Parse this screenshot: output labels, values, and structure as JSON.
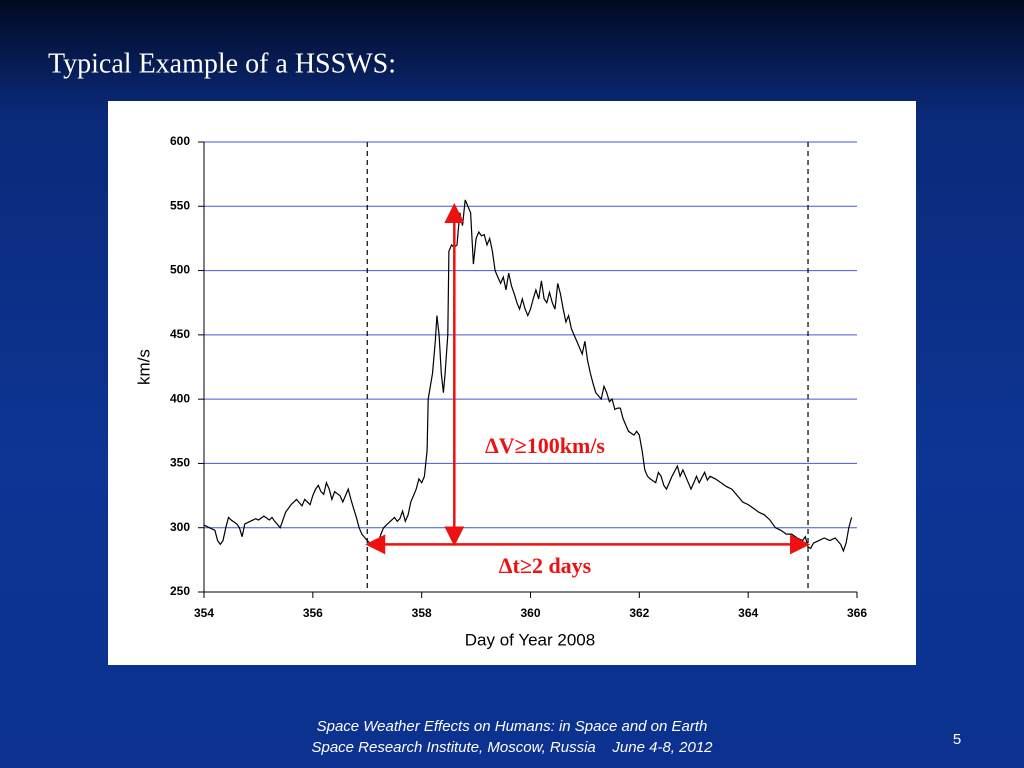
{
  "slide": {
    "title": "Typical Example of a HSSWS:",
    "footer": [
      "Space Weather Effects on Humans: in Space and on Earth",
      "Space Research Institute, Moscow, Russia    June 4-8, 2012"
    ],
    "page_number": "5"
  },
  "chart_data": {
    "type": "line",
    "x_label": "Day of Year 2008",
    "y_label": "km/s",
    "xlim": [
      354,
      366
    ],
    "xticks": [
      354,
      356,
      358,
      360,
      362,
      364,
      366
    ],
    "ylim": [
      250,
      600
    ],
    "yticks": [
      250,
      300,
      350,
      400,
      450,
      500,
      550,
      600
    ],
    "grid": true,
    "grid_color": "#4455dd",
    "color": "#000000",
    "x": [
      354.0,
      354.1,
      354.2,
      354.25,
      354.3,
      354.35,
      354.4,
      354.45,
      354.5,
      354.6,
      354.65,
      354.7,
      354.75,
      354.85,
      354.95,
      355.0,
      355.1,
      355.2,
      355.25,
      355.3,
      355.4,
      355.5,
      355.6,
      355.7,
      355.8,
      355.85,
      355.95,
      356.0,
      356.05,
      356.1,
      356.15,
      356.2,
      356.25,
      356.3,
      356.35,
      356.4,
      356.5,
      356.55,
      356.6,
      356.65,
      356.7,
      356.75,
      356.8,
      356.85,
      356.9,
      357.0,
      357.05,
      357.1,
      357.15,
      357.2,
      357.25,
      357.3,
      357.4,
      357.5,
      357.55,
      357.6,
      357.65,
      357.7,
      357.75,
      357.8,
      357.85,
      357.9,
      357.95,
      358.0,
      358.05,
      358.1,
      358.12,
      358.2,
      358.25,
      358.28,
      358.32,
      358.36,
      358.4,
      358.43,
      358.48,
      358.5,
      358.55,
      358.6,
      358.65,
      358.7,
      358.75,
      358.8,
      358.85,
      358.9,
      358.95,
      359.0,
      359.05,
      359.1,
      359.15,
      359.2,
      359.25,
      359.3,
      359.35,
      359.4,
      359.45,
      359.5,
      359.55,
      359.6,
      359.65,
      359.7,
      359.75,
      359.8,
      359.85,
      359.9,
      359.95,
      360.0,
      360.05,
      360.1,
      360.15,
      360.2,
      360.25,
      360.3,
      360.35,
      360.4,
      360.45,
      360.5,
      360.55,
      360.6,
      360.65,
      360.7,
      360.75,
      360.8,
      360.85,
      360.9,
      360.95,
      361.0,
      361.05,
      361.1,
      361.15,
      361.2,
      361.3,
      361.35,
      361.4,
      361.45,
      361.5,
      361.55,
      361.6,
      361.65,
      361.7,
      361.75,
      361.8,
      361.9,
      361.95,
      362.0,
      362.05,
      362.1,
      362.15,
      362.2,
      362.3,
      362.35,
      362.4,
      362.45,
      362.5,
      362.6,
      362.7,
      362.75,
      362.8,
      362.9,
      362.95,
      363.0,
      363.05,
      363.1,
      363.2,
      363.25,
      363.3,
      363.4,
      363.5,
      363.6,
      363.7,
      363.8,
      363.9,
      364.0,
      364.1,
      364.2,
      364.3,
      364.4,
      364.5,
      364.6,
      364.7,
      364.8,
      364.9,
      365.0,
      365.05,
      365.1,
      365.15,
      365.2,
      365.3,
      365.4,
      365.5,
      365.6,
      365.7,
      365.75,
      365.8,
      365.85,
      365.9
    ],
    "values": [
      302,
      300,
      298,
      290,
      287,
      290,
      300,
      308,
      306,
      303,
      300,
      293,
      303,
      305,
      307,
      306,
      309,
      306,
      308,
      305,
      300,
      312,
      318,
      322,
      317,
      322,
      318,
      325,
      330,
      333,
      328,
      326,
      335,
      330,
      322,
      328,
      325,
      320,
      325,
      330,
      322,
      315,
      308,
      300,
      295,
      290,
      288,
      285,
      290,
      287,
      295,
      300,
      304,
      308,
      305,
      307,
      313,
      305,
      310,
      320,
      325,
      330,
      338,
      335,
      340,
      360,
      400,
      420,
      445,
      465,
      450,
      420,
      405,
      420,
      450,
      515,
      520,
      518,
      520,
      545,
      535,
      555,
      550,
      545,
      505,
      525,
      530,
      527,
      528,
      520,
      525,
      515,
      500,
      495,
      490,
      495,
      485,
      498,
      488,
      482,
      475,
      470,
      478,
      470,
      465,
      470,
      478,
      485,
      478,
      492,
      478,
      475,
      483,
      475,
      470,
      490,
      482,
      470,
      460,
      465,
      455,
      450,
      445,
      440,
      435,
      445,
      430,
      420,
      412,
      405,
      400,
      410,
      405,
      398,
      400,
      392,
      393,
      393,
      385,
      380,
      375,
      372,
      375,
      372,
      360,
      345,
      340,
      338,
      335,
      343,
      340,
      333,
      330,
      340,
      348,
      340,
      345,
      335,
      330,
      335,
      340,
      335,
      343,
      337,
      340,
      338,
      335,
      332,
      330,
      325,
      320,
      318,
      315,
      312,
      310,
      306,
      300,
      298,
      295,
      295,
      292,
      290,
      293,
      285,
      284,
      288,
      290,
      292,
      290,
      292,
      287,
      282,
      288,
      300,
      308
    ],
    "reference_lines": [
      357,
      365.1
    ],
    "reference_color": "#000000",
    "arrows": [
      {
        "x": [
          358.6,
          358.6
        ],
        "y": [
          287,
          551
        ],
        "label": "ΔV≥100km/s"
      },
      {
        "x": [
          357,
          365.1
        ],
        "y": [
          287,
          287
        ],
        "label": "Δt≥2 days"
      }
    ],
    "arrow_color": "#ee1111"
  }
}
